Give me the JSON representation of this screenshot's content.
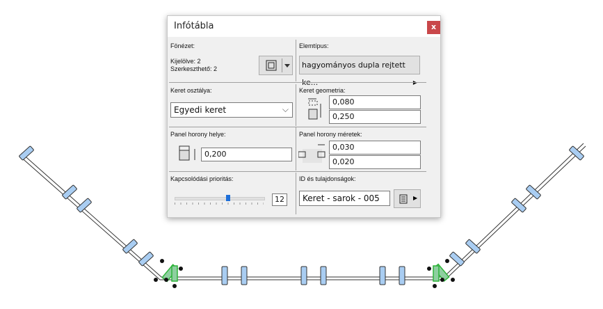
{
  "dialog": {
    "title": "Infótábla",
    "close_label": "x"
  },
  "fonezet": {
    "label": "Fönézet:",
    "selected": "Kijelölve: 2",
    "editable": "Szerkeszthető: 2"
  },
  "elemtipus": {
    "label": "Elemtípus:",
    "value": "hagyományos dupla rejtett ke..."
  },
  "keret_osztalya": {
    "label": "Keret osztálya:",
    "value": "Egyedi keret"
  },
  "keret_geometria": {
    "label": "Keret geometria:",
    "width": "0,080",
    "depth": "0,250"
  },
  "panel_horony_helye": {
    "label": "Panel horony helye:",
    "value": "0,200"
  },
  "panel_horony_meretek": {
    "label": "Panel horony méretek:",
    "width": "0,030",
    "depth": "0,020"
  },
  "kapcsolodasi": {
    "label": "Kapcsolódási prioritás:",
    "value": "12",
    "slider_fraction": 0.6
  },
  "id": {
    "label": "ID és tulajdonságok:",
    "value": "Keret - sarok - 005"
  },
  "colors": {
    "close": "#c9474a",
    "mullion": "#a9cdf2",
    "selected": "#2fb33a"
  }
}
